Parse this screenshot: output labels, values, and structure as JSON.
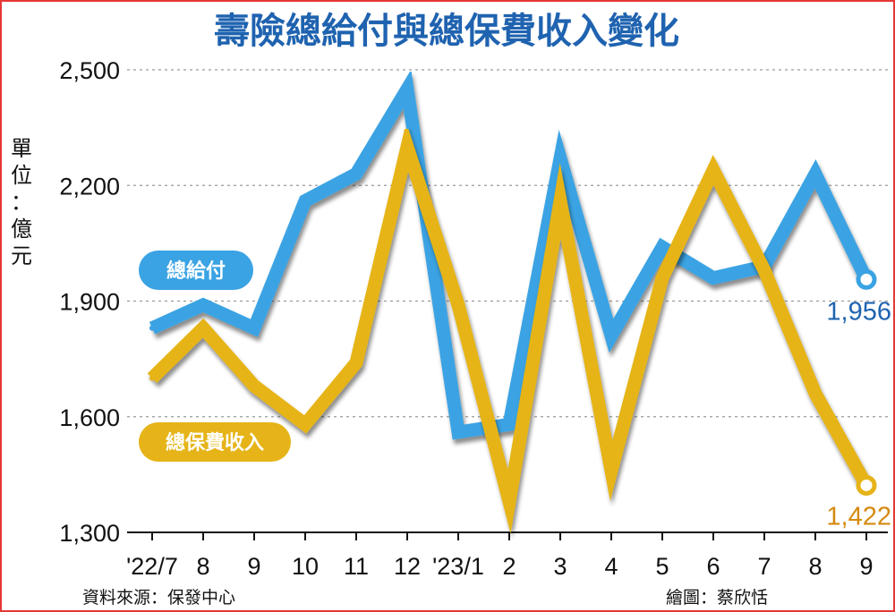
{
  "chart_data": {
    "type": "line",
    "title": "壽險總給付與總保費收入變化",
    "unit_label": [
      "單",
      "位",
      "：",
      "億",
      "元"
    ],
    "categories": [
      "'22/7",
      "8",
      "9",
      "10",
      "11",
      "12",
      "'23/1",
      "2",
      "3",
      "4",
      "5",
      "6",
      "7",
      "8",
      "9"
    ],
    "ylim": [
      1300,
      2500
    ],
    "yticks": [
      "1,300",
      "1,600",
      "1,900",
      "2,200",
      "2,500"
    ],
    "ytick_values": [
      1300,
      1600,
      1900,
      2200,
      2500
    ],
    "grid": "horizontal dashed",
    "series": [
      {
        "name": "總給付",
        "color": "#3aa3e3",
        "values": [
          1830,
          1890,
          1830,
          2160,
          2230,
          2450,
          1560,
          1580,
          2270,
          1810,
          2040,
          1960,
          1990,
          2230,
          1956
        ],
        "end_label": "1,956",
        "label_color": "#1f63b0"
      },
      {
        "name": "總保費收入",
        "color": "#e6b419",
        "values": [
          1700,
          1830,
          1680,
          1580,
          1740,
          2300,
          1890,
          1380,
          2160,
          1460,
          1960,
          2240,
          1980,
          1660,
          1422
        ],
        "end_label": "1,422",
        "label_color": "#d58a10"
      }
    ]
  },
  "footer": {
    "source": "資料來源：保發中心",
    "credit": "繪圖：蔡欣恬"
  }
}
